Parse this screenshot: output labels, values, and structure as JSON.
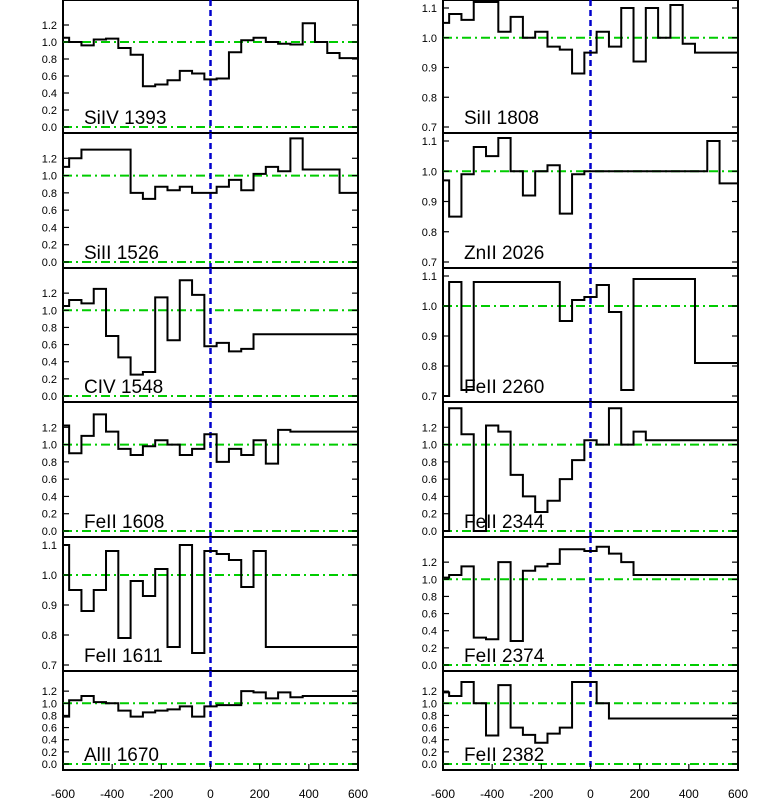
{
  "chart_data": [
    {
      "type": "line",
      "label": "SiIV 1393",
      "yticks": [
        "0.0",
        "0.2",
        "0.4",
        "0.6",
        "0.8",
        "1.0",
        "1.2"
      ],
      "ylim": [
        0.0,
        1.4
      ],
      "x": [
        -600,
        -550,
        -500,
        -450,
        -400,
        -350,
        -300,
        -250,
        -200,
        -150,
        -100,
        -50,
        0,
        50,
        100,
        150,
        200,
        250,
        300,
        350,
        400,
        450,
        500,
        550,
        600
      ],
      "values": [
        1.05,
        1.0,
        0.96,
        1.03,
        1.04,
        0.93,
        0.85,
        0.48,
        0.5,
        0.55,
        0.66,
        0.63,
        0.56,
        0.57,
        0.88,
        1.02,
        1.05,
        1.0,
        0.98,
        0.97,
        1.22,
        1.0,
        0.87,
        0.81,
        0.81
      ]
    },
    {
      "type": "line",
      "label": "SiII 1526",
      "yticks": [
        "0.0",
        "0.2",
        "0.4",
        "0.6",
        "0.8",
        "1.0",
        "1.2"
      ],
      "ylim": [
        0.0,
        1.4
      ],
      "x": [
        -600,
        -550,
        -500,
        -450,
        -400,
        -350,
        -300,
        -250,
        -200,
        -150,
        -100,
        -50,
        0,
        50,
        100,
        150,
        200,
        250,
        300,
        350,
        400,
        450,
        500,
        550,
        600
      ],
      "values": [
        1.1,
        1.2,
        1.3,
        1.3,
        1.3,
        1.3,
        0.8,
        0.73,
        0.87,
        0.83,
        0.87,
        0.8,
        0.8,
        0.87,
        0.95,
        0.83,
        1.02,
        1.1,
        1.05,
        1.43,
        1.07,
        1.07,
        1.07,
        0.8,
        0.8
      ]
    },
    {
      "type": "line",
      "label": "CIV 1548",
      "yticks": [
        "0.0",
        "0.2",
        "0.4",
        "0.6",
        "0.8",
        "1.0",
        "1.2"
      ],
      "ylim": [
        0.0,
        1.4
      ],
      "x": [
        -600,
        -550,
        -500,
        -450,
        -400,
        -350,
        -300,
        -250,
        -200,
        -150,
        -100,
        -50,
        0,
        50,
        100,
        150,
        200,
        250,
        300,
        350,
        400,
        450,
        500,
        550,
        600
      ],
      "values": [
        1.05,
        1.12,
        1.08,
        1.25,
        0.7,
        0.45,
        0.25,
        0.28,
        1.15,
        0.65,
        1.35,
        1.18,
        0.58,
        0.62,
        0.52,
        0.55,
        0.72,
        0.72,
        0.72,
        0.72,
        0.72,
        0.72,
        0.72,
        0.72,
        0.72
      ]
    },
    {
      "type": "line",
      "label": "FeII 1608",
      "yticks": [
        "0.0",
        "0.2",
        "0.4",
        "0.6",
        "0.8",
        "1.0",
        "1.2"
      ],
      "ylim": [
        0.0,
        1.4
      ],
      "x": [
        -600,
        -550,
        -500,
        -450,
        -400,
        -350,
        -300,
        -250,
        -200,
        -150,
        -100,
        -50,
        0,
        50,
        100,
        150,
        200,
        250,
        300,
        350,
        400,
        450,
        500,
        550,
        600
      ],
      "values": [
        1.22,
        0.9,
        1.1,
        1.35,
        1.15,
        0.95,
        0.88,
        0.98,
        1.05,
        1.0,
        0.88,
        0.95,
        1.12,
        0.8,
        0.95,
        0.88,
        1.05,
        0.78,
        1.17,
        1.15,
        1.15,
        1.15,
        1.15,
        1.15,
        1.15
      ]
    },
    {
      "type": "line",
      "label": "FeII 1611",
      "yticks": [
        "0.7",
        "0.8",
        "0.9",
        "1.0",
        "1.1"
      ],
      "ylim": [
        0.7,
        1.1
      ],
      "x": [
        -600,
        -550,
        -500,
        -450,
        -400,
        -350,
        -300,
        -250,
        -200,
        -150,
        -100,
        -50,
        0,
        50,
        100,
        150,
        200,
        250,
        300,
        350,
        400,
        450,
        500,
        550,
        600
      ],
      "values": [
        1.1,
        0.95,
        0.88,
        0.95,
        1.08,
        0.79,
        0.98,
        0.93,
        1.02,
        0.76,
        1.1,
        0.74,
        1.08,
        1.07,
        1.05,
        0.96,
        1.08,
        0.76,
        0.76,
        0.76,
        0.76,
        0.76,
        0.76,
        0.76,
        0.76
      ]
    },
    {
      "type": "line",
      "label": "AlII 1670",
      "yticks": [
        "0.0",
        "0.2",
        "0.4",
        "0.6",
        "0.8",
        "1.0",
        "1.2"
      ],
      "ylim": [
        0.0,
        1.4
      ],
      "x": [
        -600,
        -550,
        -500,
        -450,
        -400,
        -350,
        -300,
        -250,
        -200,
        -150,
        -100,
        -50,
        0,
        50,
        100,
        150,
        200,
        250,
        300,
        350,
        400,
        450,
        500,
        550,
        600
      ],
      "values": [
        0.78,
        1.05,
        1.12,
        1.02,
        1.0,
        0.88,
        0.78,
        0.85,
        0.88,
        0.9,
        0.95,
        0.78,
        0.95,
        0.97,
        0.97,
        1.2,
        1.18,
        1.08,
        1.18,
        1.1,
        1.12,
        1.12,
        1.12,
        1.12,
        1.12
      ]
    },
    {
      "type": "line",
      "label": "SiII 1808",
      "yticks": [
        "0.7",
        "0.8",
        "0.9",
        "1.0",
        "1.1"
      ],
      "ylim": [
        0.7,
        1.1
      ],
      "x": [
        -600,
        -550,
        -500,
        -450,
        -400,
        -350,
        -300,
        -250,
        -200,
        -150,
        -100,
        -50,
        0,
        50,
        100,
        150,
        200,
        250,
        300,
        350,
        400,
        450,
        500,
        550,
        600
      ],
      "values": [
        1.05,
        1.08,
        1.06,
        1.12,
        1.12,
        1.02,
        1.07,
        1.0,
        1.02,
        0.97,
        0.96,
        0.88,
        0.95,
        1.02,
        0.97,
        1.1,
        0.92,
        1.1,
        1.0,
        1.11,
        0.98,
        0.95,
        0.95,
        0.95,
        0.95
      ]
    },
    {
      "type": "line",
      "label": "ZnII 2026",
      "yticks": [
        "0.7",
        "0.8",
        "0.9",
        "1.0",
        "1.1"
      ],
      "ylim": [
        0.7,
        1.1
      ],
      "x": [
        -600,
        -550,
        -500,
        -450,
        -400,
        -350,
        -300,
        -250,
        -200,
        -150,
        -100,
        -50,
        0,
        50,
        100,
        150,
        200,
        250,
        300,
        350,
        400,
        450,
        500,
        550,
        600
      ],
      "values": [
        0.97,
        0.85,
        0.99,
        1.08,
        1.05,
        1.11,
        1.0,
        0.92,
        1.0,
        1.02,
        0.86,
        0.99,
        1.0,
        1.0,
        1.0,
        1.0,
        1.0,
        1.0,
        1.0,
        1.0,
        1.0,
        1.0,
        1.1,
        0.96,
        0.96
      ]
    },
    {
      "type": "line",
      "label": "FeII 2260",
      "yticks": [
        "0.7",
        "0.8",
        "0.9",
        "1.0",
        "1.1"
      ],
      "ylim": [
        0.7,
        1.1
      ],
      "x": [
        -600,
        -550,
        -500,
        -450,
        -400,
        -350,
        -300,
        -250,
        -200,
        -150,
        -100,
        -50,
        0,
        50,
        100,
        150,
        200,
        250,
        300,
        350,
        400,
        450,
        500,
        550,
        600
      ],
      "values": [
        0.7,
        1.08,
        0.72,
        1.08,
        1.08,
        1.08,
        1.08,
        1.08,
        1.08,
        1.08,
        0.95,
        1.02,
        1.03,
        1.07,
        0.98,
        0.72,
        1.09,
        1.09,
        1.09,
        1.09,
        1.09,
        0.81,
        0.81,
        0.81,
        0.81
      ]
    },
    {
      "type": "line",
      "label": "FeII 2344",
      "yticks": [
        "0.0",
        "0.2",
        "0.4",
        "0.6",
        "0.8",
        "1.0",
        "1.2"
      ],
      "ylim": [
        0.0,
        1.4
      ],
      "x": [
        -600,
        -550,
        -500,
        -450,
        -400,
        -350,
        -300,
        -250,
        -200,
        -150,
        -100,
        -50,
        0,
        50,
        100,
        150,
        200,
        250,
        300,
        350,
        400,
        450,
        500,
        550,
        600
      ],
      "values": [
        0.0,
        1.42,
        1.12,
        0.0,
        1.22,
        1.15,
        0.65,
        0.4,
        0.22,
        0.35,
        0.6,
        0.82,
        1.05,
        1.0,
        1.42,
        1.0,
        1.15,
        1.05,
        1.05,
        1.05,
        1.05,
        1.05,
        1.05,
        1.05,
        1.05
      ]
    },
    {
      "type": "line",
      "label": "FeII 2374",
      "yticks": [
        "0.0",
        "0.2",
        "0.4",
        "0.6",
        "0.8",
        "1.0",
        "1.2"
      ],
      "ylim": [
        0.0,
        1.4
      ],
      "x": [
        -600,
        -550,
        -500,
        -450,
        -400,
        -350,
        -300,
        -250,
        -200,
        -150,
        -100,
        -50,
        0,
        50,
        100,
        150,
        200,
        250,
        300,
        350,
        400,
        450,
        500,
        550,
        600
      ],
      "values": [
        1.02,
        1.05,
        1.15,
        0.32,
        0.3,
        1.2,
        0.28,
        1.1,
        1.15,
        1.18,
        1.35,
        1.35,
        1.33,
        1.38,
        1.3,
        1.2,
        1.05,
        1.05,
        1.05,
        1.05,
        1.05,
        1.05,
        1.05,
        1.05,
        1.05
      ]
    },
    {
      "type": "line",
      "label": "FeII 2382",
      "yticks": [
        "0.0",
        "0.2",
        "0.4",
        "0.6",
        "0.8",
        "1.0",
        "1.2"
      ],
      "ylim": [
        0.0,
        1.4
      ],
      "x": [
        -600,
        -550,
        -500,
        -450,
        -400,
        -350,
        -300,
        -250,
        -200,
        -150,
        -100,
        -50,
        0,
        50,
        100,
        150,
        200,
        250,
        300,
        350,
        400,
        450,
        500,
        550,
        600
      ],
      "values": [
        1.18,
        1.12,
        1.35,
        1.0,
        0.47,
        1.3,
        0.6,
        0.48,
        0.35,
        0.5,
        0.6,
        1.35,
        1.35,
        1.0,
        0.75,
        0.75,
        0.75,
        0.75,
        0.75,
        0.75,
        0.75,
        0.75,
        0.75,
        0.75,
        0.75
      ]
    }
  ],
  "xticks": [
    "-600",
    "-400",
    "-200",
    "0",
    "200",
    "400",
    "600"
  ],
  "colors": {
    "zero_line": "#0000cc",
    "continuum_line": "#00cc00",
    "spectrum": "#000000"
  }
}
